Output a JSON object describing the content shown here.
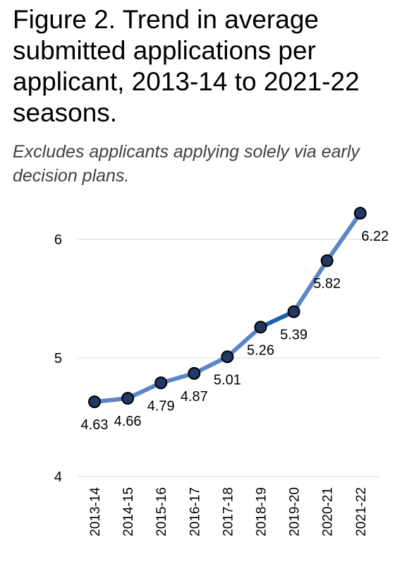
{
  "header": {
    "title": "Figure 2. Trend in average submitted applications per applicant, 2013-14 to 2021-22 seasons.",
    "subtitle": "Excludes applicants applying solely via early decision plans."
  },
  "colors": {
    "line": "#5b86c5",
    "line_highlight": "#1f5fa8",
    "marker_fill": "#1f3864",
    "marker_stroke": "#000000",
    "grid": "#d9d9d9",
    "text": "#000000"
  },
  "chart_data": {
    "type": "line",
    "categories": [
      "2013-14",
      "2014-15",
      "2015-16",
      "2016-17",
      "2017-18",
      "2018-19",
      "2019-20",
      "2020-21",
      "2021-22"
    ],
    "series": [
      {
        "values": [
          4.63,
          4.66,
          4.79,
          4.87,
          5.01,
          5.26,
          5.39,
          5.82,
          6.22
        ]
      }
    ],
    "data_labels": [
      "4.63",
      "4.66",
      "4.79",
      "4.87",
      "5.01",
      "5.26",
      "5.39",
      "5.82",
      "6.22"
    ],
    "ylim": [
      4,
      6.4
    ],
    "yticks": [
      4,
      5,
      6
    ],
    "ytick_labels": [
      "4",
      "5",
      "6"
    ],
    "grid": true,
    "highlight_segment": [
      "2018-19",
      "2019-20"
    ]
  }
}
